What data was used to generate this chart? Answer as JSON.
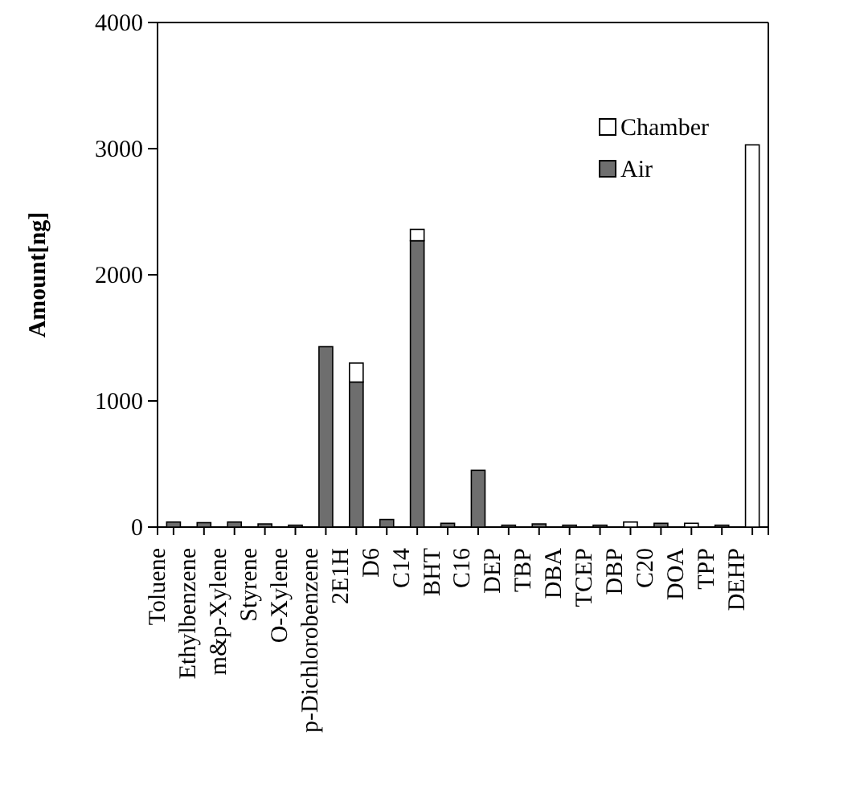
{
  "chart_data": {
    "type": "bar",
    "stacked": true,
    "ylabel": "Amount[ng]",
    "categories": [
      "Toluene",
      "Ethylbenzene",
      "m&p-Xylene",
      "Styrene",
      "O-Xylene",
      "p-Dichlorobenzene",
      "2E1H",
      "D6",
      "C14",
      "BHT",
      "C16",
      "DEP",
      "TBP",
      "DBA",
      "TCEP",
      "DBP",
      "C20",
      "DOA",
      "TPP",
      "DEHP"
    ],
    "series": [
      {
        "name": "Air",
        "color": "#6e6e6e",
        "values": [
          40,
          35,
          40,
          25,
          15,
          1430,
          1150,
          60,
          2270,
          30,
          450,
          15,
          25,
          15,
          15,
          0,
          30,
          0,
          15,
          0
        ]
      },
      {
        "name": "Chamber",
        "color": "#ffffff",
        "values": [
          0,
          0,
          0,
          0,
          0,
          0,
          150,
          0,
          90,
          0,
          0,
          0,
          0,
          0,
          0,
          40,
          0,
          30,
          0,
          3030
        ]
      }
    ],
    "ylim": [
      0,
      4000
    ],
    "yticks": [
      0,
      1000,
      2000,
      3000,
      4000
    ],
    "legend": "top right",
    "grid": false
  }
}
